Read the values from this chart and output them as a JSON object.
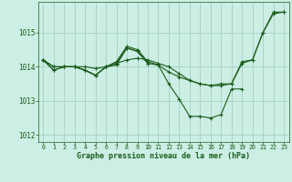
{
  "background_color": "#cceee4",
  "grid_color": "#aad4c8",
  "line_color": "#1a5c1a",
  "marker_color": "#1a5c1a",
  "xlabel": "Graphe pression niveau de la mer (hPa)",
  "xlim": [
    -0.5,
    23.5
  ],
  "ylim": [
    1011.8,
    1015.9
  ],
  "yticks": [
    1012,
    1013,
    1014,
    1015
  ],
  "xticks": [
    0,
    1,
    2,
    3,
    4,
    5,
    6,
    7,
    8,
    9,
    10,
    11,
    12,
    13,
    14,
    15,
    16,
    17,
    18,
    19,
    20,
    21,
    22,
    23
  ],
  "series": [
    [
      1014.2,
      1013.9,
      1014.0,
      1014.0,
      1013.9,
      1013.75,
      1014.0,
      1014.05,
      1014.55,
      1014.45,
      1014.1,
      1014.05,
      1013.85,
      1013.7,
      1013.6,
      1013.5,
      1013.45,
      1013.45,
      1013.5,
      1014.1,
      1014.2,
      1015.0,
      1015.55,
      1015.6
    ],
    [
      1014.2,
      1014.0,
      1014.0,
      1014.0,
      1014.0,
      1013.95,
      1014.0,
      1014.1,
      1014.2,
      1014.25,
      1014.2,
      1014.1,
      1014.0,
      1013.8,
      1013.6,
      1013.5,
      1013.45,
      1013.5,
      1013.5,
      1014.15,
      1014.2,
      1015.0,
      1015.6,
      1015.6
    ],
    [
      1014.2,
      1014.0,
      1014.0,
      1014.0,
      1013.9,
      1013.75,
      1014.0,
      1014.15,
      1014.6,
      1014.5,
      1014.15,
      1014.05,
      1013.5,
      1013.05,
      1012.55,
      1012.55,
      1012.5,
      1012.6,
      1013.35,
      1013.35,
      null,
      null,
      null,
      null
    ],
    [
      1014.2,
      1013.9,
      1014.0,
      1014.0,
      1013.9,
      1013.75,
      1014.0,
      1014.1,
      1014.55,
      1014.45,
      1014.1,
      null,
      null,
      null,
      null,
      null,
      null,
      null,
      null,
      null,
      null,
      null,
      null,
      null
    ]
  ]
}
